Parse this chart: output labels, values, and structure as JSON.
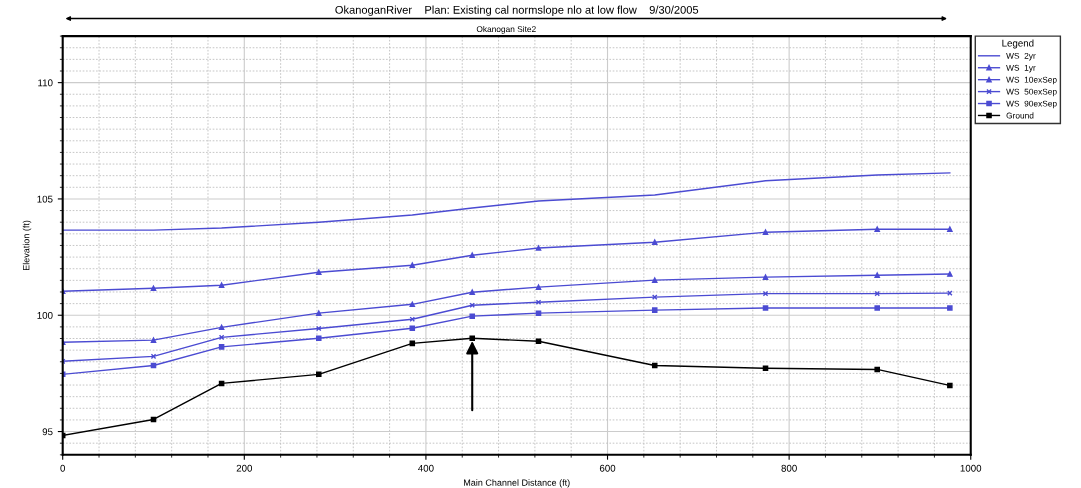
{
  "chart_data": {
    "type": "line",
    "title": "OkanoganRiver    Plan: Existing cal normslope nlo at low flow    9/30/2005",
    "subtitle": "Okanogan Site2",
    "xlabel": "Main Channel Distance (ft)",
    "ylabel": "Elevation (ft)",
    "legend_title": "Legend",
    "legend": "right",
    "grid": true,
    "xlim": [
      0,
      1000
    ],
    "xticks": [
      0,
      200,
      400,
      600,
      800,
      1000
    ],
    "ylim": [
      94,
      112
    ],
    "yticks": [
      95,
      100,
      105,
      110
    ],
    "x": [
      0,
      100,
      175,
      282,
      385,
      451,
      524,
      652,
      774,
      897,
      977
    ],
    "series": [
      {
        "name": "WS  2yr",
        "color": "#4b4bd2",
        "marker": "none",
        "values": [
          103.66,
          103.66,
          103.75,
          104.0,
          104.31,
          104.61,
          104.91,
          105.17,
          105.78,
          106.03,
          106.12
        ]
      },
      {
        "name": "WS  1yr",
        "color": "#4b4bd2",
        "marker": "triangle",
        "values": [
          101.03,
          101.16,
          101.29,
          101.85,
          102.15,
          102.58,
          102.89,
          103.14,
          103.57,
          103.7,
          103.7
        ]
      },
      {
        "name": "WS  10exSep",
        "color": "#4b4bd2",
        "marker": "triangle",
        "values": [
          98.84,
          98.93,
          99.48,
          100.09,
          100.47,
          100.99,
          101.21,
          101.51,
          101.64,
          101.72,
          101.77
        ]
      },
      {
        "name": "WS  50exSep",
        "color": "#4b4bd2",
        "marker": "cross",
        "values": [
          98.02,
          98.23,
          99.05,
          99.43,
          99.83,
          100.43,
          100.56,
          100.78,
          100.93,
          100.93,
          100.95
        ]
      },
      {
        "name": "WS  90exSep",
        "color": "#4b4bd2",
        "marker": "square",
        "values": [
          97.46,
          97.84,
          98.64,
          99.01,
          99.44,
          99.96,
          100.09,
          100.22,
          100.31,
          100.31,
          100.31
        ]
      },
      {
        "name": "Ground",
        "color": "#000000",
        "marker": "square",
        "values": [
          94.83,
          95.52,
          97.07,
          97.46,
          98.79,
          99.01,
          98.88,
          97.84,
          97.72,
          97.67,
          96.98
        ]
      }
    ]
  }
}
